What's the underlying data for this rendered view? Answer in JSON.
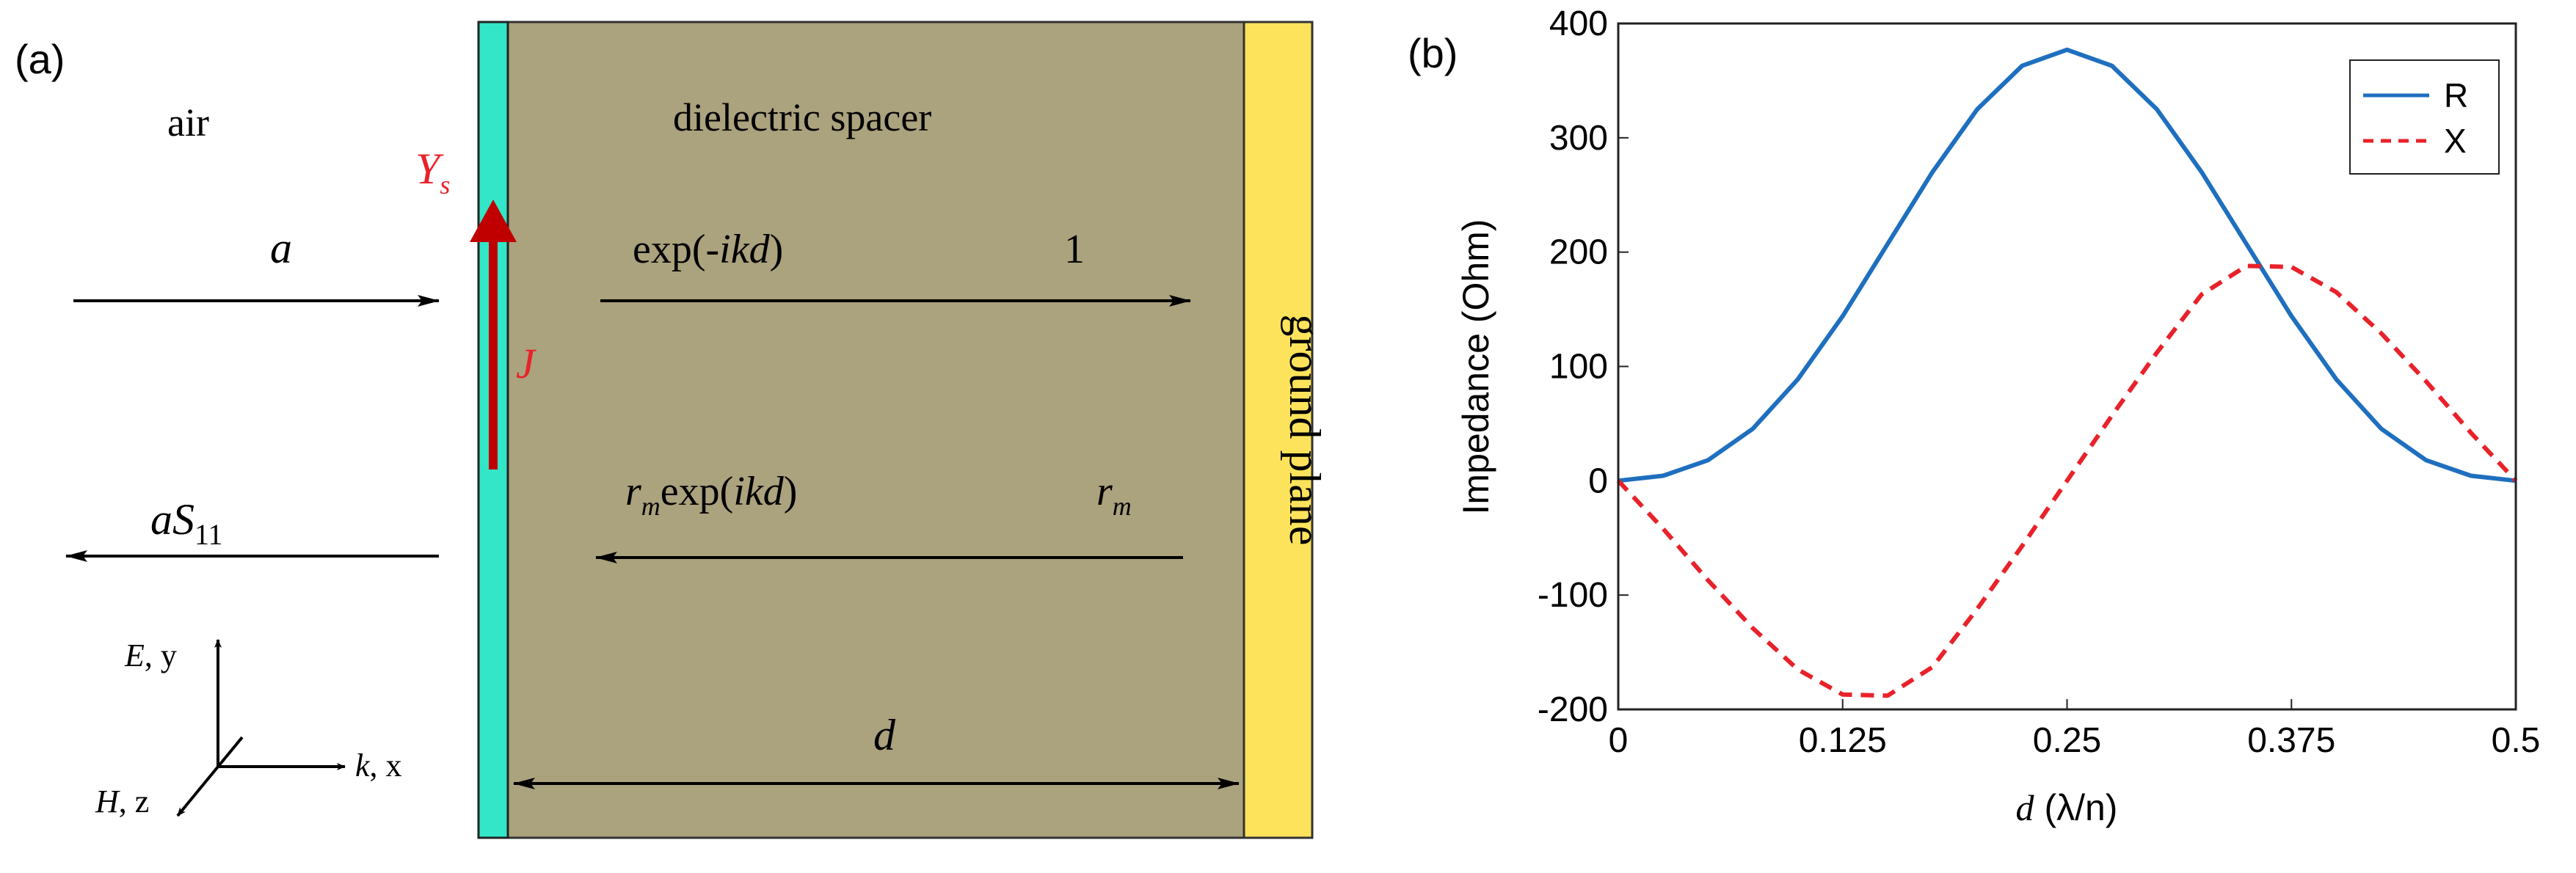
{
  "panel_a": {
    "panel_label": "(a)",
    "air_label": "air",
    "spacer_label": "dielectric spacer",
    "ground_label": "ground plane",
    "ys_main": "Y",
    "ys_sub": "s",
    "j_label": "J",
    "incident_label": "a",
    "forward_main_prefix": "exp(-",
    "forward_main_italic": "ikd",
    "forward_main_suffix": ")",
    "forward_end_label": "1",
    "reflected_label_a": "aS",
    "reflected_label_sub": "11",
    "backward_r": "r",
    "backward_r_sub": "m",
    "backward_exp_prefix": "exp(",
    "backward_exp_italic": "ikd",
    "backward_exp_suffix": ")",
    "backward_end_r": "r",
    "backward_end_sub": "m",
    "d_label": "d",
    "axis_e_italic": "E",
    "axis_e_rest": ", y",
    "axis_k_italic": "k",
    "axis_k_rest": ", x",
    "axis_h_italic": "H",
    "axis_h_rest": ", z",
    "colors": {
      "spacer": "#aba27e",
      "sheet": "#33e6c8",
      "ground": "#fde35c",
      "current": "#c00000",
      "label_red": "#e8222a"
    }
  },
  "panel_b": {
    "panel_label": "(b)",
    "chart_data": {
      "type": "line",
      "title": "",
      "xlabel_italic": "d",
      "xlabel_rest": " (λ/n)",
      "ylabel": "Impedance (Ohm)",
      "xlim": [
        0,
        0.5
      ],
      "ylim": [
        -200,
        400
      ],
      "xticks": [
        0,
        0.125,
        0.25,
        0.375,
        0.5
      ],
      "xtick_labels": [
        "0",
        "0.125",
        "0.25",
        "0.375",
        "0.5"
      ],
      "yticks": [
        -200,
        -100,
        0,
        100,
        200,
        300,
        400
      ],
      "ytick_labels": [
        "-200",
        "-100",
        "0",
        "100",
        "200",
        "300",
        "400"
      ],
      "legend_position": "top-right",
      "x": [
        0,
        0.025,
        0.05,
        0.075,
        0.1,
        0.125,
        0.15,
        0.175,
        0.2,
        0.225,
        0.25,
        0.275,
        0.3,
        0.325,
        0.35,
        0.375,
        0.4,
        0.425,
        0.45,
        0.475,
        0.5
      ],
      "series": [
        {
          "name": "R",
          "color": "#1f6fbf",
          "style": "solid",
          "values": [
            0,
            4.4,
            18.0,
            45.5,
            88.7,
            144,
            207,
            270,
            325,
            363,
            377,
            363,
            325,
            270,
            207,
            144,
            88.7,
            45.5,
            18.0,
            4.4,
            0
          ]
        },
        {
          "name": "X",
          "color": "#e8222a",
          "style": "dashed",
          "values": [
            0,
            -42,
            -87,
            -129,
            -165,
            -187,
            -188,
            -163,
            -112,
            -57,
            0,
            57,
            112,
            163,
            188,
            187,
            165,
            129,
            87,
            42,
            0
          ]
        }
      ]
    }
  }
}
